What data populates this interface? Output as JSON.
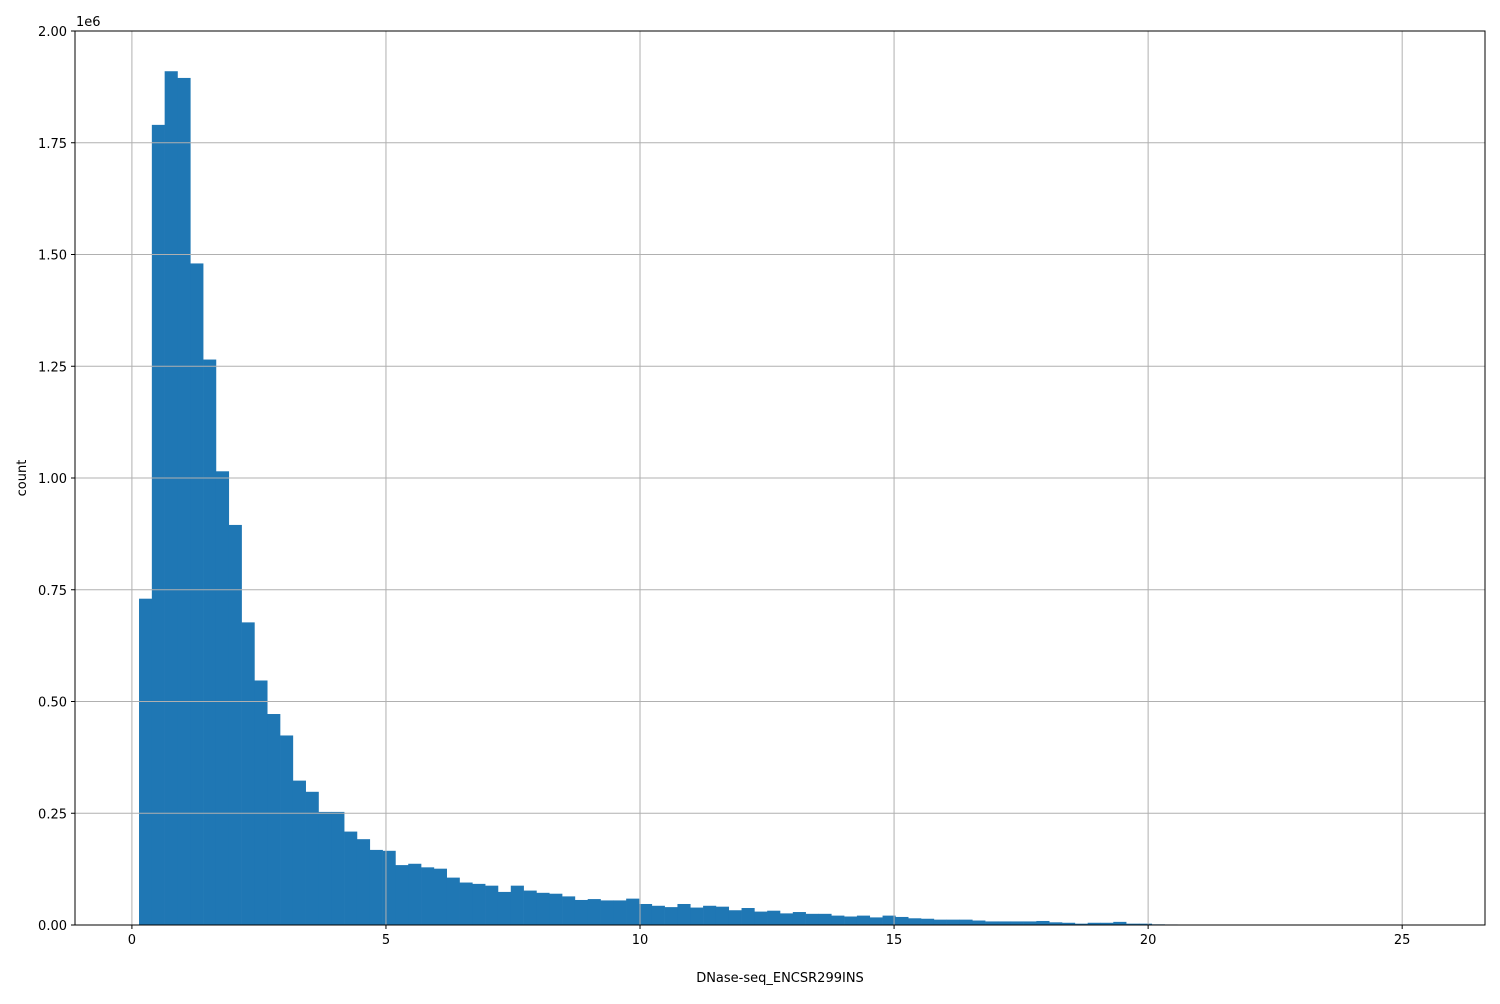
{
  "chart_data": {
    "type": "bar",
    "subtype": "histogram",
    "title": "",
    "xlabel": "DNase-seq_ENCSR299INS",
    "ylabel": "count",
    "y_offset_label": "1e6",
    "bin_start": 0.14,
    "bin_width": 0.2523,
    "xlim": [
      -1.12,
      26.63
    ],
    "ylim": [
      0,
      2000000
    ],
    "x_ticks": [
      0,
      5,
      10,
      15,
      20,
      25
    ],
    "x_tick_labels": [
      "0",
      "5",
      "10",
      "15",
      "20",
      "25"
    ],
    "y_ticks": [
      0,
      250000,
      500000,
      750000,
      1000000,
      1250000,
      1500000,
      1750000,
      2000000
    ],
    "y_tick_labels": [
      "0.00",
      "0.25",
      "0.50",
      "0.75",
      "1.00",
      "1.25",
      "1.50",
      "1.75",
      "2.00"
    ],
    "grid": true,
    "color": "#1f77b4",
    "values": [
      730000,
      1790000,
      1910000,
      1895000,
      1480000,
      1265000,
      1015000,
      895000,
      677000,
      547000,
      472000,
      424000,
      323000,
      298000,
      253000,
      253000,
      209000,
      192000,
      168000,
      166000,
      134000,
      137000,
      129000,
      126000,
      106000,
      95000,
      92000,
      88000,
      74000,
      88000,
      77000,
      72000,
      70000,
      64000,
      56000,
      58000,
      55000,
      55000,
      59000,
      47000,
      43000,
      40000,
      47000,
      39000,
      43000,
      41000,
      33000,
      38000,
      30000,
      32000,
      26000,
      29000,
      25000,
      25000,
      21000,
      19000,
      21000,
      17000,
      21000,
      18000,
      15000,
      14000,
      12000,
      12000,
      12000,
      10000,
      8000,
      8000,
      8000,
      8000,
      9000,
      6000,
      5000,
      3000,
      5000,
      5000,
      7000,
      3000,
      3000,
      1500,
      1200,
      1000,
      800,
      700,
      600,
      500,
      400,
      300,
      300,
      200,
      200,
      100,
      100,
      100,
      100,
      50,
      50,
      50,
      50,
      50
    ]
  }
}
